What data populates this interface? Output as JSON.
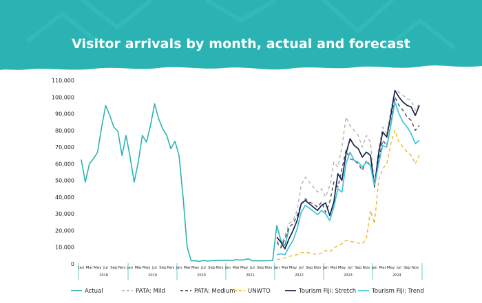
{
  "title": "Visitor arrivals by month, actual and forecast",
  "chart_data": {
    "type": "line",
    "title": "Visitor arrivals by month, actual and forecast",
    "ylim": [
      0,
      110000
    ],
    "y_ticks": [
      "0",
      "10,000",
      "20,000",
      "30,000",
      "40,000",
      "50,000",
      "60,000",
      "70,000",
      "80,000",
      "90,000",
      "100,000",
      "110,000"
    ],
    "month_cycle": [
      "Jan",
      "Mar",
      "May",
      "Jul",
      "Sep",
      "Nov"
    ],
    "x_start": "2018-01",
    "month_count": 84,
    "year_labels": [
      {
        "label": "2018",
        "center_month": 6
      },
      {
        "label": "2019",
        "center_month": 18
      },
      {
        "label": "2020",
        "center_month": 30
      },
      {
        "label": "2021",
        "center_month": 42
      },
      {
        "label": "2022",
        "center_month": 54
      },
      {
        "label": "2023",
        "center_month": 66
      },
      {
        "label": "2024",
        "center_month": 78
      }
    ],
    "grid": false,
    "legend_position": "bottom",
    "series": [
      {
        "name": "Actual",
        "color": "#2bb3b3",
        "dash": "none",
        "width": 1.6,
        "points": [
          [
            0,
            62500
          ],
          [
            1,
            49000
          ],
          [
            2,
            60000
          ],
          [
            3,
            63000
          ],
          [
            4,
            67000
          ],
          [
            5,
            82000
          ],
          [
            6,
            95000
          ],
          [
            7,
            89000
          ],
          [
            8,
            82000
          ],
          [
            9,
            79500
          ],
          [
            10,
            65000
          ],
          [
            11,
            77000
          ],
          [
            12,
            64000
          ],
          [
            13,
            49000
          ],
          [
            14,
            61000
          ],
          [
            15,
            77000
          ],
          [
            16,
            73000
          ],
          [
            17,
            83000
          ],
          [
            18,
            96000
          ],
          [
            19,
            87000
          ],
          [
            20,
            81000
          ],
          [
            21,
            77000
          ],
          [
            22,
            69000
          ],
          [
            23,
            73500
          ],
          [
            24,
            65000
          ],
          [
            25,
            40000
          ],
          [
            26,
            10000
          ],
          [
            27,
            1800
          ],
          [
            28,
            1900
          ],
          [
            29,
            1500
          ],
          [
            30,
            2000
          ],
          [
            31,
            1700
          ],
          [
            32,
            1900
          ],
          [
            33,
            2000
          ],
          [
            34,
            2100
          ],
          [
            35,
            2000
          ],
          [
            36,
            2200
          ],
          [
            37,
            2100
          ],
          [
            38,
            2500
          ],
          [
            39,
            2300
          ],
          [
            40,
            2400
          ],
          [
            41,
            3000
          ],
          [
            42,
            1800
          ],
          [
            43,
            1900
          ],
          [
            44,
            1800
          ],
          [
            45,
            1800
          ],
          [
            46,
            1900
          ],
          [
            47,
            2000
          ],
          [
            48,
            23000
          ],
          [
            49,
            14000
          ],
          [
            50,
            11000
          ],
          [
            51,
            21000
          ]
        ]
      },
      {
        "name": "PATA: Mild",
        "color": "#b3b3b3",
        "dash": "5,4",
        "width": 1.4,
        "points": [
          [
            48,
            14000
          ],
          [
            49,
            10500
          ],
          [
            50,
            17000
          ],
          [
            51,
            24000
          ],
          [
            52,
            26000
          ],
          [
            53,
            32000
          ],
          [
            54,
            47000
          ],
          [
            55,
            52000
          ],
          [
            56,
            49000
          ],
          [
            57,
            46000
          ],
          [
            58,
            43000
          ],
          [
            59,
            45000
          ],
          [
            60,
            40000
          ],
          [
            61,
            47000
          ],
          [
            62,
            61000
          ],
          [
            63,
            58000
          ],
          [
            64,
            70000
          ],
          [
            65,
            88000
          ],
          [
            66,
            83000
          ],
          [
            67,
            80000
          ],
          [
            68,
            77000
          ],
          [
            69,
            70000
          ],
          [
            70,
            77000
          ],
          [
            71,
            73000
          ],
          [
            72,
            47000
          ],
          [
            73,
            69000
          ],
          [
            74,
            82000
          ],
          [
            75,
            78000
          ],
          [
            76,
            92000
          ],
          [
            77,
            104000
          ],
          [
            78,
            103000
          ],
          [
            79,
            101000
          ],
          [
            80,
            99000
          ],
          [
            81,
            98000
          ],
          [
            82,
            92000
          ],
          [
            83,
            96000
          ]
        ]
      },
      {
        "name": "PATA: Medium",
        "color": "#46485a",
        "dash": "5,4",
        "width": 1.4,
        "points": [
          [
            48,
            13000
          ],
          [
            49,
            9500
          ],
          [
            50,
            15000
          ],
          [
            51,
            22000
          ],
          [
            52,
            24000
          ],
          [
            53,
            29000
          ],
          [
            54,
            36000
          ],
          [
            55,
            39000
          ],
          [
            56,
            37000
          ],
          [
            57,
            36000
          ],
          [
            58,
            34000
          ],
          [
            59,
            37000
          ],
          [
            60,
            31000
          ],
          [
            61,
            37000
          ],
          [
            62,
            49000
          ],
          [
            63,
            46000
          ],
          [
            64,
            57000
          ],
          [
            65,
            68000
          ],
          [
            66,
            63000
          ],
          [
            67,
            62000
          ],
          [
            68,
            60000
          ],
          [
            69,
            56000
          ],
          [
            70,
            62000
          ],
          [
            71,
            59000
          ],
          [
            72,
            46000
          ],
          [
            73,
            62000
          ],
          [
            74,
            74000
          ],
          [
            75,
            71000
          ],
          [
            76,
            84000
          ],
          [
            77,
            100000
          ],
          [
            78,
            95000
          ],
          [
            79,
            92000
          ],
          [
            80,
            88000
          ],
          [
            81,
            86000
          ],
          [
            82,
            80000
          ],
          [
            83,
            83000
          ]
        ]
      },
      {
        "name": "UNWTO",
        "color": "#f3b51f",
        "dash": "5,4",
        "width": 1.4,
        "points": [
          [
            48,
            2500
          ],
          [
            49,
            3000
          ],
          [
            50,
            3500
          ],
          [
            51,
            4500
          ],
          [
            52,
            5000
          ],
          [
            53,
            5500
          ],
          [
            54,
            6500
          ],
          [
            55,
            7000
          ],
          [
            56,
            6500
          ],
          [
            57,
            6000
          ],
          [
            58,
            5500
          ],
          [
            59,
            6500
          ],
          [
            60,
            8000
          ],
          [
            61,
            7000
          ],
          [
            62,
            9500
          ],
          [
            63,
            11000
          ],
          [
            64,
            12000
          ],
          [
            65,
            14000
          ],
          [
            66,
            13500
          ],
          [
            67,
            13000
          ],
          [
            68,
            12500
          ],
          [
            69,
            12000
          ],
          [
            70,
            15000
          ],
          [
            71,
            32000
          ],
          [
            72,
            24000
          ],
          [
            73,
            50000
          ],
          [
            74,
            57000
          ],
          [
            75,
            60000
          ],
          [
            76,
            72000
          ],
          [
            77,
            80000
          ],
          [
            78,
            73000
          ],
          [
            79,
            70000
          ],
          [
            80,
            67000
          ],
          [
            81,
            65000
          ],
          [
            82,
            60000
          ],
          [
            83,
            65000
          ]
        ]
      },
      {
        "name": "Tourism Fiji: Stretch",
        "color": "#132149",
        "dash": "none",
        "width": 1.7,
        "points": [
          [
            48,
            16000
          ],
          [
            49,
            13000
          ],
          [
            50,
            9000
          ],
          [
            51,
            15000
          ],
          [
            52,
            20000
          ],
          [
            53,
            26000
          ],
          [
            54,
            36000
          ],
          [
            55,
            38000
          ],
          [
            56,
            36000
          ],
          [
            57,
            34000
          ],
          [
            58,
            32000
          ],
          [
            59,
            35000
          ],
          [
            60,
            36500
          ],
          [
            61,
            29000
          ],
          [
            62,
            37000
          ],
          [
            63,
            54000
          ],
          [
            64,
            50000
          ],
          [
            65,
            66000
          ],
          [
            66,
            75000
          ],
          [
            67,
            71000
          ],
          [
            68,
            69000
          ],
          [
            69,
            64000
          ],
          [
            70,
            67000
          ],
          [
            71,
            65000
          ],
          [
            72,
            46500
          ],
          [
            73,
            66000
          ],
          [
            74,
            79000
          ],
          [
            75,
            76000
          ],
          [
            76,
            89000
          ],
          [
            77,
            104000
          ],
          [
            78,
            100000
          ],
          [
            79,
            97000
          ],
          [
            80,
            95000
          ],
          [
            81,
            94000
          ],
          [
            82,
            89000
          ],
          [
            83,
            95000
          ]
        ]
      },
      {
        "name": "Tourism Fiji: Trend",
        "color": "#3bc3e1",
        "dash": "none",
        "width": 1.7,
        "points": [
          [
            48,
            5500
          ],
          [
            49,
            6000
          ],
          [
            50,
            5500
          ],
          [
            51,
            10000
          ],
          [
            52,
            14000
          ],
          [
            53,
            21000
          ],
          [
            54,
            31000
          ],
          [
            55,
            35000
          ],
          [
            56,
            33500
          ],
          [
            57,
            31500
          ],
          [
            58,
            29500
          ],
          [
            59,
            32000
          ],
          [
            60,
            30000
          ],
          [
            61,
            26000
          ],
          [
            62,
            34000
          ],
          [
            63,
            45000
          ],
          [
            64,
            43000
          ],
          [
            65,
            60000
          ],
          [
            66,
            67000
          ],
          [
            67,
            62000
          ],
          [
            68,
            61000
          ],
          [
            69,
            58000
          ],
          [
            70,
            61000
          ],
          [
            71,
            59000
          ],
          [
            72,
            47000
          ],
          [
            73,
            60000
          ],
          [
            74,
            71000
          ],
          [
            75,
            70000
          ],
          [
            76,
            83000
          ],
          [
            77,
            97000
          ],
          [
            78,
            90000
          ],
          [
            79,
            85000
          ],
          [
            80,
            82000
          ],
          [
            81,
            78000
          ],
          [
            82,
            72000
          ],
          [
            83,
            74000
          ]
        ]
      }
    ]
  }
}
